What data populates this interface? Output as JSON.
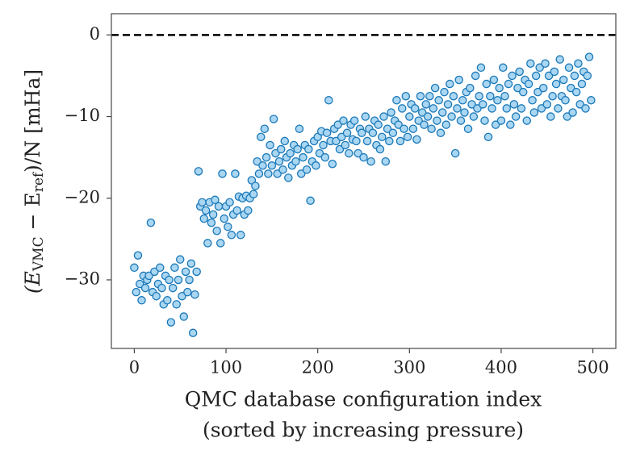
{
  "chart_data": {
    "type": "scatter",
    "xlabel": [
      "QMC database configuration index",
      "(sorted by increasing pressure)"
    ],
    "ylabel": [
      "(E",
      "VMC",
      " − E",
      "ref",
      ")/N [mHa]"
    ],
    "xlim": [
      -25,
      525
    ],
    "ylim": [
      -38.4,
      2.6
    ],
    "xticks": [
      0,
      100,
      200,
      300,
      400,
      500
    ],
    "yticks": [
      {
        "value": 0,
        "label": "0"
      },
      {
        "value": -10,
        "label": "−10"
      },
      {
        "value": -20,
        "label": "−20"
      },
      {
        "value": -30,
        "label": "−30"
      }
    ],
    "hline": 0,
    "color": "#a9d6f2",
    "edgecolor": "#1a78b8",
    "x": [
      0,
      2,
      4,
      6,
      8,
      10,
      12,
      14,
      16,
      18,
      20,
      22,
      24,
      26,
      28,
      30,
      32,
      34,
      36,
      38,
      40,
      42,
      44,
      46,
      48,
      50,
      52,
      54,
      56,
      58,
      60,
      62,
      64,
      66,
      68,
      70,
      72,
      74,
      76,
      78,
      80,
      82,
      84,
      86,
      88,
      90,
      92,
      94,
      96,
      98,
      100,
      102,
      104,
      106,
      108,
      110,
      112,
      114,
      116,
      118,
      120,
      122,
      124,
      126,
      128,
      130,
      132,
      134,
      136,
      138,
      140,
      142,
      144,
      146,
      148,
      150,
      152,
      154,
      156,
      158,
      160,
      162,
      164,
      166,
      168,
      170,
      172,
      174,
      176,
      178,
      180,
      182,
      184,
      186,
      188,
      190,
      192,
      194,
      196,
      198,
      200,
      202,
      204,
      206,
      208,
      210,
      212,
      214,
      216,
      218,
      220,
      222,
      224,
      226,
      228,
      230,
      232,
      234,
      236,
      238,
      240,
      242,
      244,
      246,
      248,
      250,
      252,
      254,
      256,
      258,
      260,
      262,
      264,
      266,
      268,
      270,
      272,
      274,
      276,
      278,
      280,
      282,
      284,
      286,
      288,
      290,
      292,
      294,
      296,
      298,
      300,
      302,
      304,
      306,
      308,
      310,
      312,
      314,
      316,
      318,
      320,
      322,
      324,
      326,
      328,
      330,
      332,
      334,
      336,
      338,
      340,
      342,
      344,
      346,
      348,
      350,
      352,
      354,
      356,
      358,
      360,
      362,
      364,
      366,
      368,
      370,
      372,
      374,
      376,
      378,
      380,
      382,
      384,
      386,
      388,
      390,
      392,
      394,
      396,
      398,
      400,
      402,
      404,
      406,
      408,
      410,
      412,
      414,
      416,
      418,
      420,
      422,
      424,
      426,
      428,
      430,
      432,
      434,
      436,
      438,
      440,
      442,
      444,
      446,
      448,
      450,
      452,
      454,
      456,
      458,
      460,
      462,
      464,
      466,
      468,
      470,
      472,
      474,
      476,
      478,
      480,
      482,
      484,
      486,
      488,
      490,
      492,
      494,
      496,
      498
    ],
    "y": [
      -28.5,
      -31.5,
      -27,
      -30.5,
      -32.5,
      -29.5,
      -31,
      -30,
      -29.5,
      -23,
      -31.5,
      -29,
      -32,
      -30.5,
      -28.5,
      -31,
      -33,
      -29.5,
      -32.5,
      -30,
      -35.2,
      -31,
      -28.5,
      -33,
      -30,
      -27.5,
      -32,
      -34.5,
      -29,
      -31.5,
      -30,
      -28,
      -36.5,
      -31.8,
      -29,
      -16.7,
      -21,
      -20.5,
      -22.5,
      -21.5,
      -25.5,
      -20.5,
      -23,
      -22,
      -20.2,
      -24,
      -21,
      -25.5,
      -17,
      -22.5,
      -21,
      -23.5,
      -20.5,
      -24.5,
      -22,
      -17,
      -21.5,
      -19.8,
      -24.5,
      -20,
      -22,
      -19.7,
      -21.5,
      -20,
      -17.8,
      -19.5,
      -18.5,
      -15.5,
      -17,
      -12.5,
      -16,
      -11.5,
      -15,
      -17,
      -13.5,
      -16,
      -10.3,
      -14.5,
      -17,
      -15.5,
      -14,
      -16.5,
      -13,
      -15,
      -17.5,
      -14.5,
      -16,
      -13.5,
      -15.5,
      -14,
      -11.5,
      -17,
      -15,
      -13.5,
      -16.5,
      -14,
      -20.3,
      -15.5,
      -13,
      -16,
      -12.5,
      -14.5,
      -11.8,
      -13.5,
      -15,
      -12,
      -8,
      -13,
      -15.8,
      -11.5,
      -13,
      -11,
      -14,
      -12.5,
      -10.5,
      -13.5,
      -12,
      -14.5,
      -11,
      -12.8,
      -10.5,
      -13,
      -14.5,
      -11.5,
      -12,
      -15,
      -10,
      -13,
      -11.5,
      -15.5,
      -12,
      -10.5,
      -13.5,
      -11,
      -14,
      -12.5,
      -10,
      -15.5,
      -11.5,
      -13,
      -9.5,
      -12,
      -10.5,
      -8,
      -11,
      -13,
      -9,
      -11.5,
      -7.5,
      -12.5,
      -10,
      -8.5,
      -11.5,
      -9,
      -12.8,
      -10.5,
      -7.5,
      -9.5,
      -11,
      -8.5,
      -10,
      -7.5,
      -11.5,
      -9,
      -6.5,
      -10.5,
      -8,
      -12,
      -9.5,
      -7,
      -11,
      -8.5,
      -6,
      -10,
      -7.5,
      -14.5,
      -9,
      -5.5,
      -10.5,
      -8,
      -9.5,
      -7,
      -11.5,
      -6.5,
      -8.5,
      -10,
      -5,
      -9,
      -7.5,
      -4,
      -8.5,
      -10.5,
      -6,
      -12.5,
      -7.5,
      -9,
      -5.5,
      -11,
      -8,
      -6.5,
      -10.5,
      -4,
      -7.5,
      -9,
      -6,
      -11,
      -5,
      -8.5,
      -10,
      -6.5,
      -4.5,
      -9,
      -7,
      -5.5,
      -10.5,
      -6,
      -3.5,
      -8,
      -9.5,
      -5,
      -7,
      -4,
      -9,
      -6.5,
      -3.5,
      -8.5,
      -5,
      -10,
      -7.5,
      -4.5,
      -6,
      -9,
      -3,
      -7.5,
      -5.5,
      -8,
      -10,
      -4,
      -6.5,
      -9.5,
      -5,
      -7,
      -3.5,
      -8.5,
      -6,
      -4.5,
      -9,
      -5,
      -2.7,
      -8
    ]
  }
}
